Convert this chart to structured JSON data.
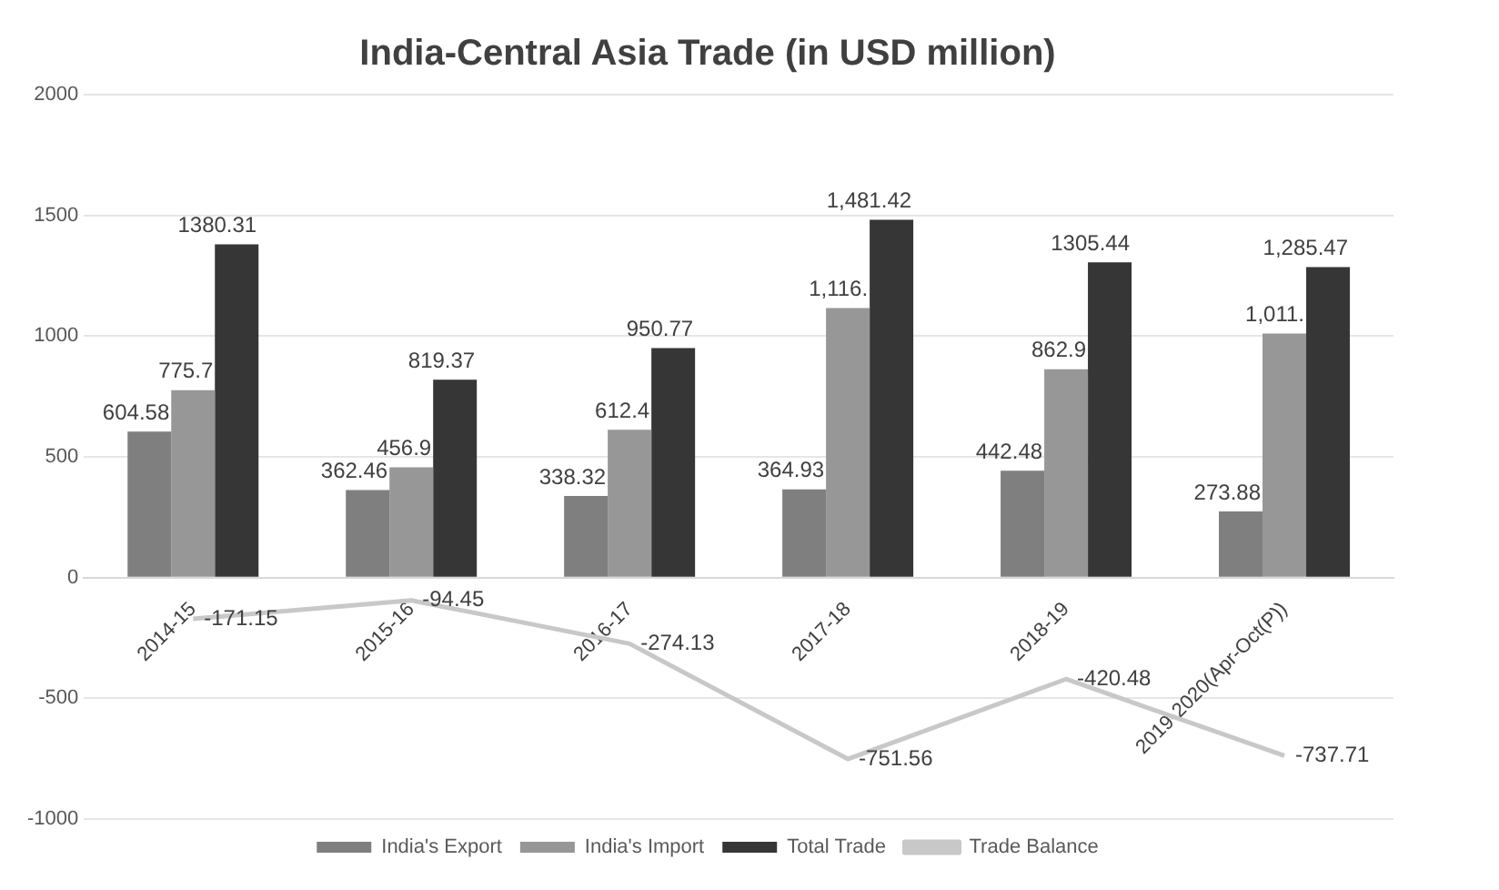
{
  "chart_data": {
    "type": "bar",
    "title": "India-Central Asia Trade (in USD million)",
    "categories": [
      "2014-15",
      "2015-16",
      "2016-17",
      "2017-18",
      "2018-19",
      "2019-2020(Apr-Oct(P))"
    ],
    "series": [
      {
        "name": "India's Export",
        "color": "#7f7f7f",
        "values": [
          604.58,
          362.46,
          338.32,
          364.93,
          442.48,
          273.88
        ],
        "value_labels": [
          "604.58",
          "362.46",
          "338.32",
          "364.93",
          "442.48",
          "273.88"
        ]
      },
      {
        "name": "India's Import",
        "color": "#979797",
        "values": [
          775.7,
          456.9,
          612.4,
          1116,
          862.9,
          1011
        ],
        "value_labels": [
          "775.7",
          "456.9",
          "612.4",
          "1,116.",
          "862.9",
          "1,011."
        ]
      },
      {
        "name": "Total Trade",
        "color": "#363636",
        "values": [
          1380.31,
          819.37,
          950.77,
          1481.42,
          1305.44,
          1285.47
        ],
        "value_labels": [
          "1380.31",
          "819.37",
          "950.77",
          "1,481.42",
          "1305.44",
          "1,285.47"
        ]
      },
      {
        "name": "Trade Balance",
        "type": "line",
        "color": "#c8c8c8",
        "values": [
          -171.15,
          -94.45,
          -274.13,
          -751.56,
          -420.48,
          -737.71
        ],
        "value_labels": [
          "-171.15",
          "-94.45",
          "-274.13",
          "-751.56",
          "-420.48",
          "-737.71"
        ]
      }
    ],
    "ylim": [
      -1000,
      2000
    ],
    "yticks": [
      -1000,
      -500,
      0,
      500,
      1000,
      1500,
      2000
    ],
    "grid": "y",
    "legend": "bottom",
    "marker": "none"
  }
}
